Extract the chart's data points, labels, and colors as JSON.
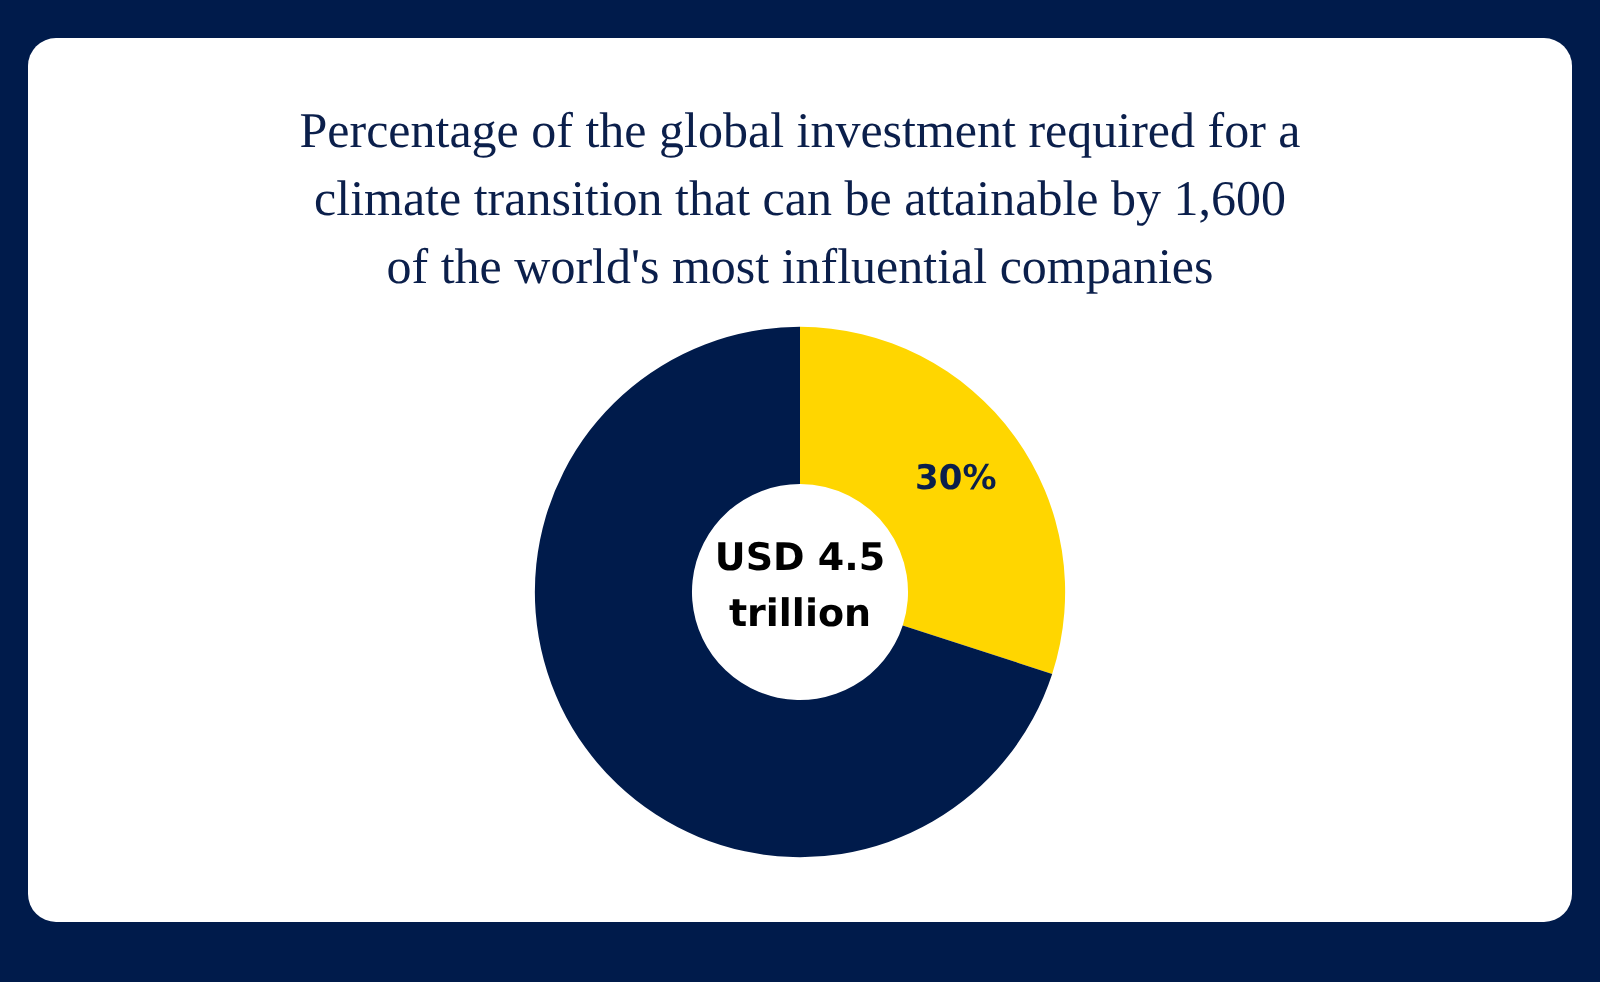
{
  "chart_data": {
    "type": "donut",
    "title": "Percentage of the global investment required for a\nclimate transition that can be attainable by 1,600\nof the world's most influential companies",
    "categories": [
      null,
      null
    ],
    "values": [
      30,
      70
    ],
    "colors": [
      "#ffd600",
      "#001b4b"
    ],
    "value_labels": [
      "30%",
      null
    ],
    "annotations": [
      "USD 4.5\ntrillion"
    ]
  }
}
